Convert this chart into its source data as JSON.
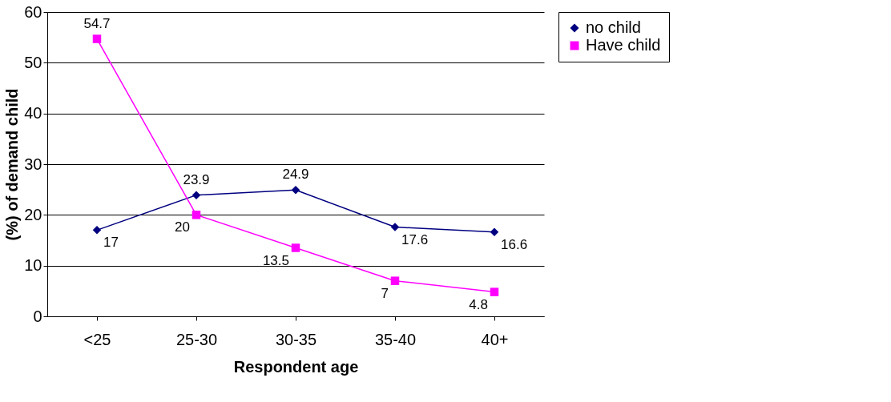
{
  "chart_data": {
    "type": "line",
    "xlabel": "Respondent age",
    "ylabel": "(%) of demand child",
    "categories": [
      "<25",
      "25-30",
      "30-35",
      "35-40",
      "40+"
    ],
    "series": [
      {
        "name": "no child",
        "color": "#000080",
        "marker": "diamond",
        "values": [
          17,
          23.9,
          24.9,
          17.6,
          16.6
        ]
      },
      {
        "name": "Have child",
        "color": "#ff00ff",
        "marker": "square",
        "values": [
          54.7,
          20,
          13.5,
          7,
          4.8
        ]
      }
    ],
    "ylim": [
      0,
      60
    ],
    "yticks": [
      0,
      10,
      20,
      30,
      40,
      50,
      60
    ],
    "grid": "y",
    "legend": "right",
    "data_labels": true,
    "line_style": "solid"
  }
}
